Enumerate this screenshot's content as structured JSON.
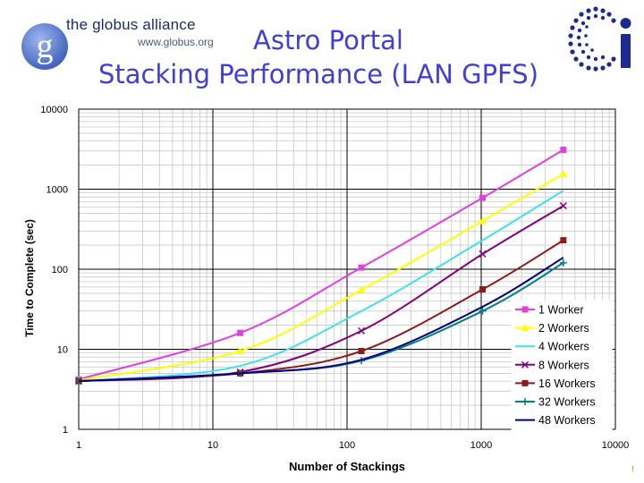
{
  "header": {
    "logo_name": "the globus alliance",
    "logo_url": "www.globus.org",
    "title_line1": "Astro Portal",
    "title_line2": "Stacking Performance (LAN GPFS)"
  },
  "colors": {
    "title": "#3f3fd8",
    "plot_bg": "#ffffff",
    "grid_major": "#000000",
    "grid_minor": "#c8c8c8"
  },
  "corner_mark": "!",
  "chart_data": {
    "type": "line",
    "title": "",
    "xlabel": "Number of Stackings",
    "ylabel": "Time to Complete (sec)",
    "xscale": "log",
    "yscale": "log",
    "xlim": [
      1,
      10000
    ],
    "ylim": [
      1,
      10000
    ],
    "xticks": [
      1,
      10,
      100,
      1000,
      10000
    ],
    "xtick_labels": [
      "1",
      "10",
      "100",
      "1000",
      "10000"
    ],
    "yticks": [
      1,
      10,
      100,
      1000,
      10000
    ],
    "ytick_labels": [
      "1",
      "10",
      "100",
      "1000",
      "10000"
    ],
    "grid": true,
    "legend_position": "bottom-right",
    "series": [
      {
        "name": "1 Worker",
        "color": "#e040e0",
        "marker": "square",
        "x": [
          1,
          16,
          128,
          1024,
          4096
        ],
        "y": [
          4.2,
          16,
          105,
          780,
          3100
        ]
      },
      {
        "name": "2 Workers",
        "color": "#ffff00",
        "marker": "triangle",
        "x": [
          1,
          16,
          128,
          1024,
          4096
        ],
        "y": [
          4.1,
          9.5,
          55,
          400,
          1550
        ]
      },
      {
        "name": "4 Workers",
        "color": "#40e0f0",
        "marker": "none",
        "x": [
          1,
          16,
          128,
          1024,
          4096
        ],
        "y": [
          4.0,
          6.2,
          30,
          230,
          960
        ]
      },
      {
        "name": "8 Workers",
        "color": "#800080",
        "marker": "x",
        "x": [
          1,
          16,
          128,
          1024,
          4096
        ],
        "y": [
          4.0,
          5.2,
          17,
          155,
          620
        ]
      },
      {
        "name": "16 Workers",
        "color": "#8b1a1a",
        "marker": "square",
        "x": [
          1,
          16,
          128,
          1024,
          4096
        ],
        "y": [
          4.0,
          5.0,
          9.5,
          56,
          230
        ]
      },
      {
        "name": "32 Workers",
        "color": "#008080",
        "marker": "plus",
        "x": [
          1,
          16,
          128,
          1024,
          4096
        ],
        "y": [
          4.0,
          5.0,
          7.2,
          30,
          120
        ]
      },
      {
        "name": "48 Workers",
        "color": "#000080",
        "marker": "none",
        "x": [
          1,
          16,
          128,
          1024,
          4096
        ],
        "y": [
          4.0,
          5.0,
          7.4,
          34,
          140
        ]
      }
    ]
  }
}
